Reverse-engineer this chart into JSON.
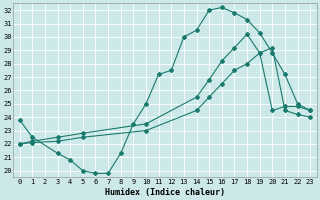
{
  "title": "",
  "xlabel": "Humidex (Indice chaleur)",
  "bg_color": "#cce8e8",
  "grid_color": "#ffffff",
  "line_color": "#1a7a6e",
  "xlim": [
    -0.5,
    23.5
  ],
  "ylim": [
    19.5,
    32.5
  ],
  "yticks": [
    20,
    21,
    22,
    23,
    24,
    25,
    26,
    27,
    28,
    29,
    30,
    31,
    32
  ],
  "xticks": [
    0,
    1,
    2,
    3,
    4,
    5,
    6,
    7,
    8,
    9,
    10,
    11,
    12,
    13,
    14,
    15,
    16,
    17,
    18,
    19,
    20,
    21,
    22,
    23
  ],
  "line1_x": [
    0,
    1,
    3,
    4,
    5,
    6,
    7,
    8,
    9,
    10,
    11,
    12,
    13,
    14,
    15,
    16,
    17,
    18,
    19,
    20,
    21,
    22,
    23
  ],
  "line1_y": [
    23.8,
    22.5,
    21.3,
    20.8,
    20.0,
    19.8,
    19.8,
    21.3,
    23.5,
    25.0,
    27.2,
    27.5,
    30.0,
    30.5,
    32.0,
    32.2,
    31.8,
    31.3,
    30.3,
    28.8,
    27.2,
    25.0,
    24.5
  ],
  "line2_x": [
    0,
    1,
    3,
    5,
    10,
    14,
    15,
    16,
    17,
    18,
    19,
    20,
    21,
    22,
    23
  ],
  "line2_y": [
    22.0,
    22.2,
    22.5,
    22.8,
    23.5,
    25.5,
    26.8,
    28.2,
    29.2,
    30.2,
    28.8,
    24.5,
    24.8,
    24.8,
    24.5
  ],
  "line3_x": [
    0,
    1,
    3,
    5,
    10,
    14,
    15,
    16,
    17,
    18,
    19,
    20,
    21,
    22,
    23
  ],
  "line3_y": [
    22.0,
    22.1,
    22.2,
    22.5,
    23.0,
    24.5,
    25.5,
    26.5,
    27.5,
    28.0,
    28.8,
    29.2,
    24.5,
    24.2,
    24.0
  ]
}
